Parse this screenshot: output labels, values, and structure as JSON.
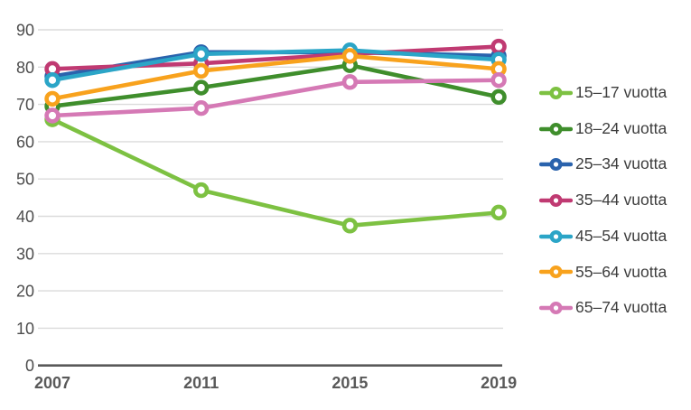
{
  "chart_data": {
    "type": "line",
    "title": "",
    "xlabel": "",
    "ylabel": "",
    "x_categories": [
      "2007",
      "2011",
      "2015",
      "2019"
    ],
    "ylim": [
      0,
      90
    ],
    "yticks": [
      0,
      10,
      20,
      30,
      40,
      50,
      60,
      70,
      80,
      90
    ],
    "grid": "horizontal",
    "legend_position": "right",
    "marker_style": "open-circle",
    "series": [
      {
        "name": "15–17 vuotta",
        "color": "#7DC142",
        "values": [
          66,
          47,
          37.5,
          41
        ]
      },
      {
        "name": "18–24 vuotta",
        "color": "#3F8E2C",
        "values": [
          69.5,
          74.5,
          80.5,
          72
        ]
      },
      {
        "name": "25–34 vuotta",
        "color": "#2A63AD",
        "values": [
          77.5,
          84,
          84,
          83
        ]
      },
      {
        "name": "35–44 vuotta",
        "color": "#C03A72",
        "values": [
          79.5,
          81,
          83.5,
          85.5
        ]
      },
      {
        "name": "45–54 vuotta",
        "color": "#2BA5C7",
        "values": [
          76.5,
          83.5,
          84.5,
          82
        ]
      },
      {
        "name": "55–64 vuotta",
        "color": "#F8A21D",
        "values": [
          71.5,
          79,
          83,
          79.5
        ]
      },
      {
        "name": "65–74 vuotta",
        "color": "#D579B5",
        "values": [
          67,
          69,
          76,
          76.5
        ]
      }
    ]
  },
  "style": {
    "grid_color": "#DBDBDB",
    "axis_color": "#595959",
    "ytick_color": "#4D4D4D",
    "xtick_color": "#595959",
    "legend_text_color": "#3D3D3D",
    "background": "#FFFFFF"
  }
}
